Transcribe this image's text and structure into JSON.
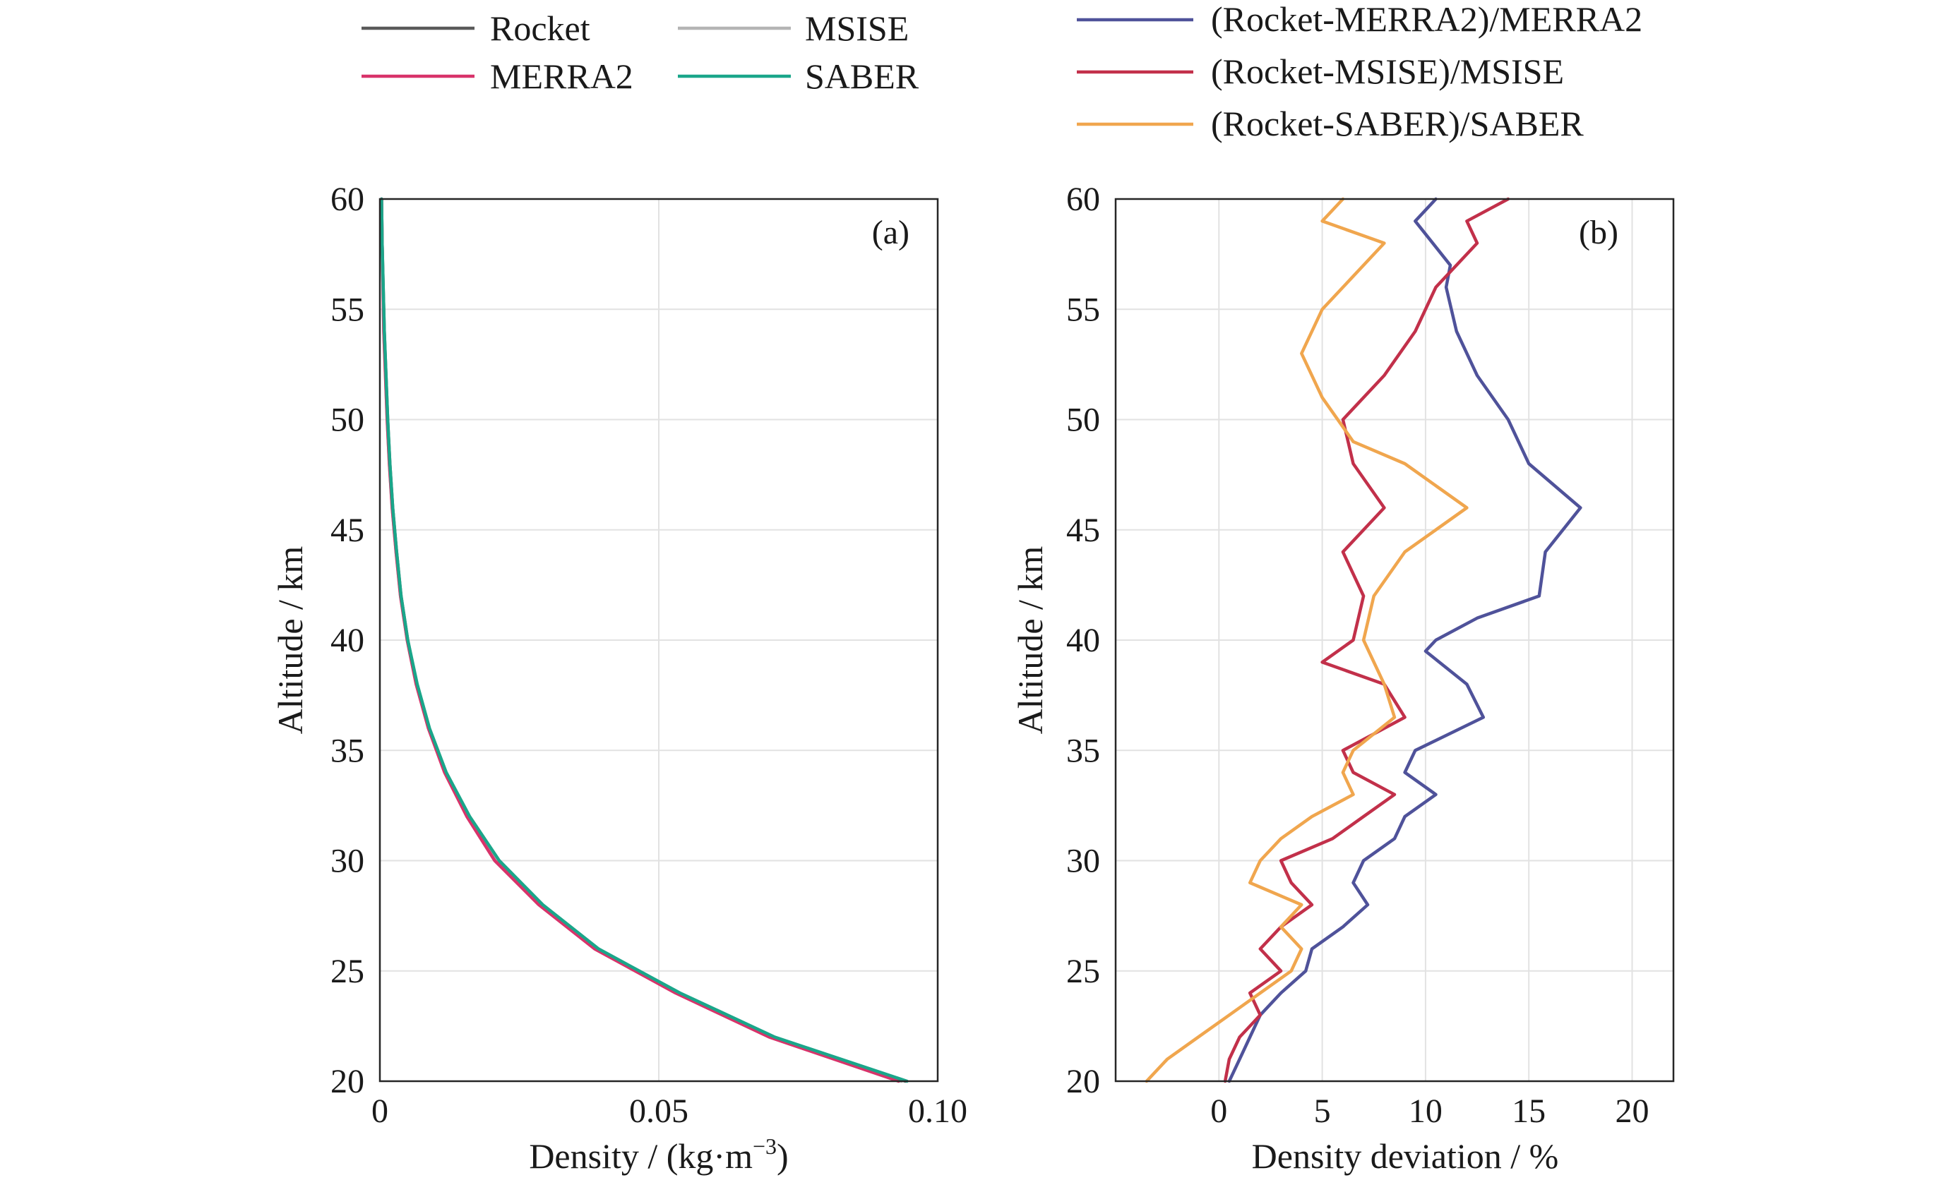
{
  "chart_data": [
    {
      "type": "line",
      "panel_label": "(a)",
      "xlabel": "Density / (kg·m",
      "xlabel_exponent": "−3",
      "xlabel_suffix": ")",
      "ylabel": "Altitude / km",
      "xlim": [
        0,
        0.1
      ],
      "ylim": [
        20,
        60
      ],
      "x_ticks": [
        0,
        0.05,
        0.1
      ],
      "x_tick_labels": [
        "0",
        "0.05",
        "0.10"
      ],
      "y_ticks": [
        20,
        25,
        30,
        35,
        40,
        45,
        50,
        55,
        60
      ],
      "y_tick_labels": [
        "20",
        "25",
        "30",
        "35",
        "40",
        "45",
        "50",
        "55",
        "60"
      ],
      "grid": true,
      "legend_position": "top-left, above plot",
      "series": [
        {
          "name": "Rocket",
          "color": "#5a5a5a",
          "points": [
            [
              0.0942,
              20
            ],
            [
              0.0705,
              22
            ],
            [
              0.0535,
              24
            ],
            [
              0.039,
              26
            ],
            [
              0.029,
              28
            ],
            [
              0.0212,
              30
            ],
            [
              0.016,
              32
            ],
            [
              0.0118,
              34
            ],
            [
              0.0088,
              36
            ],
            [
              0.0066,
              38
            ],
            [
              0.005,
              40
            ],
            [
              0.0038,
              42
            ],
            [
              0.003,
              44
            ],
            [
              0.0023,
              46
            ],
            [
              0.0018,
              48
            ],
            [
              0.0014,
              50
            ],
            [
              0.0008,
              54
            ],
            [
              0.0004,
              58
            ],
            [
              0.0003,
              60
            ]
          ]
        },
        {
          "name": "MSISE",
          "color": "#b4b4b4",
          "points": [
            [
              0.0935,
              20
            ],
            [
              0.07,
              22
            ],
            [
              0.0532,
              24
            ],
            [
              0.0388,
              26
            ],
            [
              0.0288,
              28
            ],
            [
              0.021,
              30
            ],
            [
              0.0158,
              32
            ],
            [
              0.0117,
              34
            ],
            [
              0.0087,
              36
            ],
            [
              0.0065,
              38
            ],
            [
              0.0049,
              40
            ],
            [
              0.0037,
              42
            ],
            [
              0.0029,
              44
            ],
            [
              0.0022,
              46
            ],
            [
              0.0017,
              48
            ],
            [
              0.0013,
              50
            ],
            [
              0.0007,
              54
            ],
            [
              0.0004,
              58
            ],
            [
              0.0003,
              60
            ]
          ]
        },
        {
          "name": "MERRA2",
          "color": "#d8336a",
          "points": [
            [
              0.093,
              20
            ],
            [
              0.0698,
              22
            ],
            [
              0.053,
              24
            ],
            [
              0.0385,
              26
            ],
            [
              0.0285,
              28
            ],
            [
              0.0206,
              30
            ],
            [
              0.0156,
              32
            ],
            [
              0.0116,
              34
            ],
            [
              0.0087,
              36
            ],
            [
              0.0065,
              38
            ],
            [
              0.0049,
              40
            ],
            [
              0.0037,
              42
            ],
            [
              0.0029,
              44
            ],
            [
              0.0022,
              46
            ],
            [
              0.0017,
              48
            ],
            [
              0.0013,
              50
            ],
            [
              0.0007,
              54
            ],
            [
              0.0004,
              58
            ],
            [
              0.0003,
              60
            ]
          ]
        },
        {
          "name": "SABER",
          "color": "#1aa68a",
          "points": [
            [
              0.0945,
              20
            ],
            [
              0.0708,
              22
            ],
            [
              0.0538,
              24
            ],
            [
              0.0392,
              26
            ],
            [
              0.0292,
              28
            ],
            [
              0.0214,
              30
            ],
            [
              0.0161,
              32
            ],
            [
              0.0119,
              34
            ],
            [
              0.0089,
              36
            ],
            [
              0.0067,
              38
            ],
            [
              0.005,
              40
            ],
            [
              0.0038,
              42
            ],
            [
              0.003,
              44
            ],
            [
              0.0023,
              46
            ],
            [
              0.0018,
              48
            ],
            [
              0.0014,
              50
            ],
            [
              0.0008,
              54
            ],
            [
              0.0004,
              58
            ],
            [
              0.0003,
              60
            ]
          ]
        }
      ]
    },
    {
      "type": "line",
      "panel_label": "(b)",
      "xlabel": "Density deviation / %",
      "ylabel": "Altitude / km",
      "xlim": [
        -5,
        22
      ],
      "ylim": [
        20,
        60
      ],
      "x_ticks": [
        0,
        5,
        10,
        15,
        20
      ],
      "x_tick_labels": [
        "0",
        "5",
        "10",
        "15",
        "20"
      ],
      "y_ticks": [
        20,
        25,
        30,
        35,
        40,
        45,
        50,
        55,
        60
      ],
      "y_tick_labels": [
        "20",
        "25",
        "30",
        "35",
        "40",
        "45",
        "50",
        "55",
        "60"
      ],
      "grid": true,
      "legend_position": "top, above plot",
      "series": [
        {
          "name": "(Rocket-MERRA2)/MERRA2",
          "color": "#4f529a",
          "points": [
            [
              0.5,
              20
            ],
            [
              1.0,
              21
            ],
            [
              1.5,
              22
            ],
            [
              2.0,
              23
            ],
            [
              3.0,
              24
            ],
            [
              4.2,
              25
            ],
            [
              4.5,
              26
            ],
            [
              6.0,
              27
            ],
            [
              7.2,
              28
            ],
            [
              6.5,
              29
            ],
            [
              7.0,
              30
            ],
            [
              8.5,
              31
            ],
            [
              9.0,
              32
            ],
            [
              10.5,
              33
            ],
            [
              9.0,
              34
            ],
            [
              9.5,
              35
            ],
            [
              12.8,
              36.5
            ],
            [
              12.0,
              38
            ],
            [
              10.0,
              39.5
            ],
            [
              10.5,
              40
            ],
            [
              12.5,
              41
            ],
            [
              15.5,
              42
            ],
            [
              15.8,
              44
            ],
            [
              17.5,
              46
            ],
            [
              15.0,
              48
            ],
            [
              14.0,
              50
            ],
            [
              12.5,
              52
            ],
            [
              11.5,
              54
            ],
            [
              11.0,
              56
            ],
            [
              11.2,
              57
            ],
            [
              9.5,
              59
            ],
            [
              10.5,
              60
            ]
          ]
        },
        {
          "name": "(Rocket-MSISE)/MSISE",
          "color": "#c2304a",
          "points": [
            [
              0.3,
              20
            ],
            [
              0.5,
              21
            ],
            [
              1.0,
              22
            ],
            [
              2.0,
              23
            ],
            [
              1.5,
              24
            ],
            [
              3.0,
              25
            ],
            [
              2.0,
              26
            ],
            [
              3.0,
              27
            ],
            [
              4.5,
              28
            ],
            [
              3.5,
              29
            ],
            [
              3.0,
              30
            ],
            [
              5.5,
              31
            ],
            [
              7.0,
              32
            ],
            [
              8.5,
              33
            ],
            [
              6.5,
              34
            ],
            [
              6.0,
              35
            ],
            [
              9.0,
              36.5
            ],
            [
              8.0,
              38
            ],
            [
              5.0,
              39
            ],
            [
              6.5,
              40
            ],
            [
              7.0,
              42
            ],
            [
              6.0,
              44
            ],
            [
              8.0,
              46
            ],
            [
              6.5,
              48
            ],
            [
              6.0,
              50
            ],
            [
              8.0,
              52
            ],
            [
              9.5,
              54
            ],
            [
              10.5,
              56
            ],
            [
              12.5,
              58
            ],
            [
              12.0,
              59
            ],
            [
              14.0,
              60
            ]
          ]
        },
        {
          "name": "(Rocket-SABER)/SABER",
          "color": "#f0a64e",
          "points": [
            [
              -3.5,
              20
            ],
            [
              -2.5,
              21
            ],
            [
              -1.0,
              22
            ],
            [
              0.5,
              23
            ],
            [
              2.0,
              24
            ],
            [
              3.5,
              25
            ],
            [
              4.0,
              26
            ],
            [
              3.0,
              27
            ],
            [
              4.0,
              28
            ],
            [
              1.5,
              29
            ],
            [
              2.0,
              30
            ],
            [
              3.0,
              31
            ],
            [
              4.5,
              32
            ],
            [
              6.5,
              33
            ],
            [
              6.0,
              34
            ],
            [
              6.5,
              35
            ],
            [
              8.5,
              36.5
            ],
            [
              8.0,
              38
            ],
            [
              7.0,
              40
            ],
            [
              7.5,
              42
            ],
            [
              9.0,
              44
            ],
            [
              12.0,
              46
            ],
            [
              9.0,
              48
            ],
            [
              6.5,
              49
            ],
            [
              5.0,
              51
            ],
            [
              4.0,
              53
            ],
            [
              5.0,
              55
            ],
            [
              8.0,
              58
            ],
            [
              5.0,
              59
            ],
            [
              6.0,
              60
            ]
          ]
        }
      ]
    }
  ]
}
